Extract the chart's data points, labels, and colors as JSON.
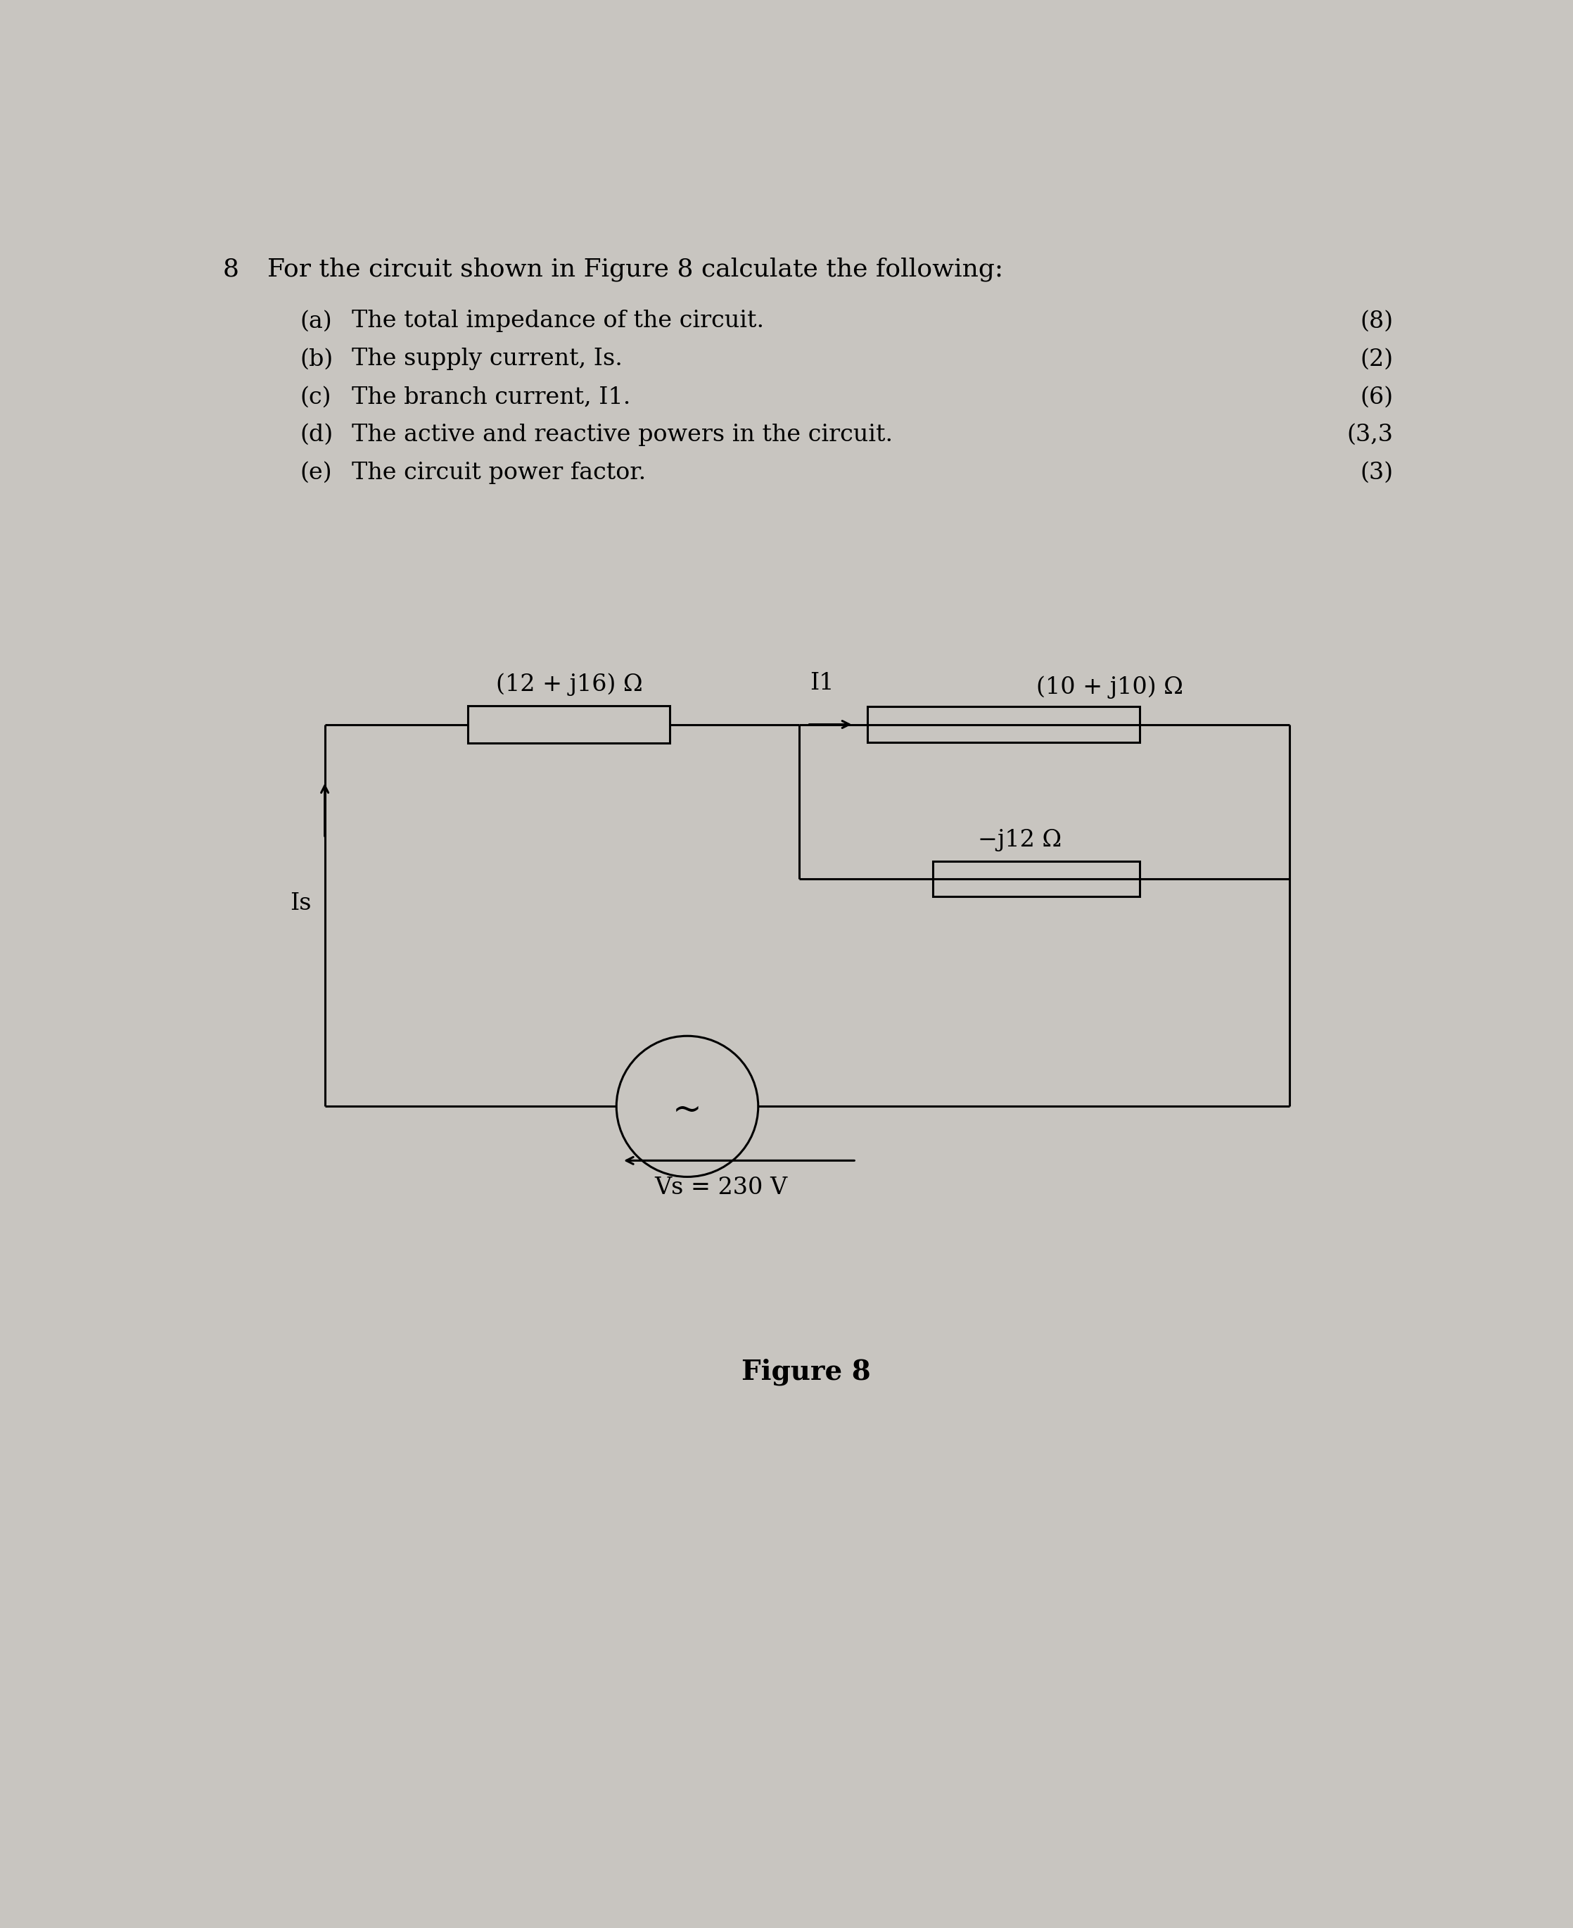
{
  "bg_color": "#c8c5c0",
  "question_number": "8",
  "question_text": "For the circuit shown in Figure 8 calculate the following:",
  "items": [
    {
      "label": "(a)",
      "text": "The total impedance of the circuit.",
      "marks": "(8)"
    },
    {
      "label": "(b)",
      "text": "The supply current, Is.",
      "marks": "(2)"
    },
    {
      "label": "(c)",
      "text": "The branch current, I1.",
      "marks": "(6)"
    },
    {
      "label": "(d)",
      "text": "The active and reactive powers in the circuit.",
      "marks": "(3,3"
    },
    {
      "label": "(e)",
      "text": "The circuit power factor.",
      "marks": "(3)"
    }
  ],
  "figure_caption": "Figure 8",
  "circuit": {
    "series_impedance_label": "(12 + j16) Ω",
    "parallel_branch1_label": "(10 + j10) Ω",
    "parallel_branch2_label": "−j12 Ω",
    "I1_label": "I1",
    "Is_label": "Is",
    "Vs_label": "Vs = 230 V"
  },
  "font_size_q_num": 26,
  "font_size_header": 26,
  "font_size_items": 24,
  "font_size_marks": 24,
  "font_size_circuit_label": 24,
  "font_size_circuit_small": 22,
  "font_size_tilde": 36,
  "font_size_caption": 28
}
